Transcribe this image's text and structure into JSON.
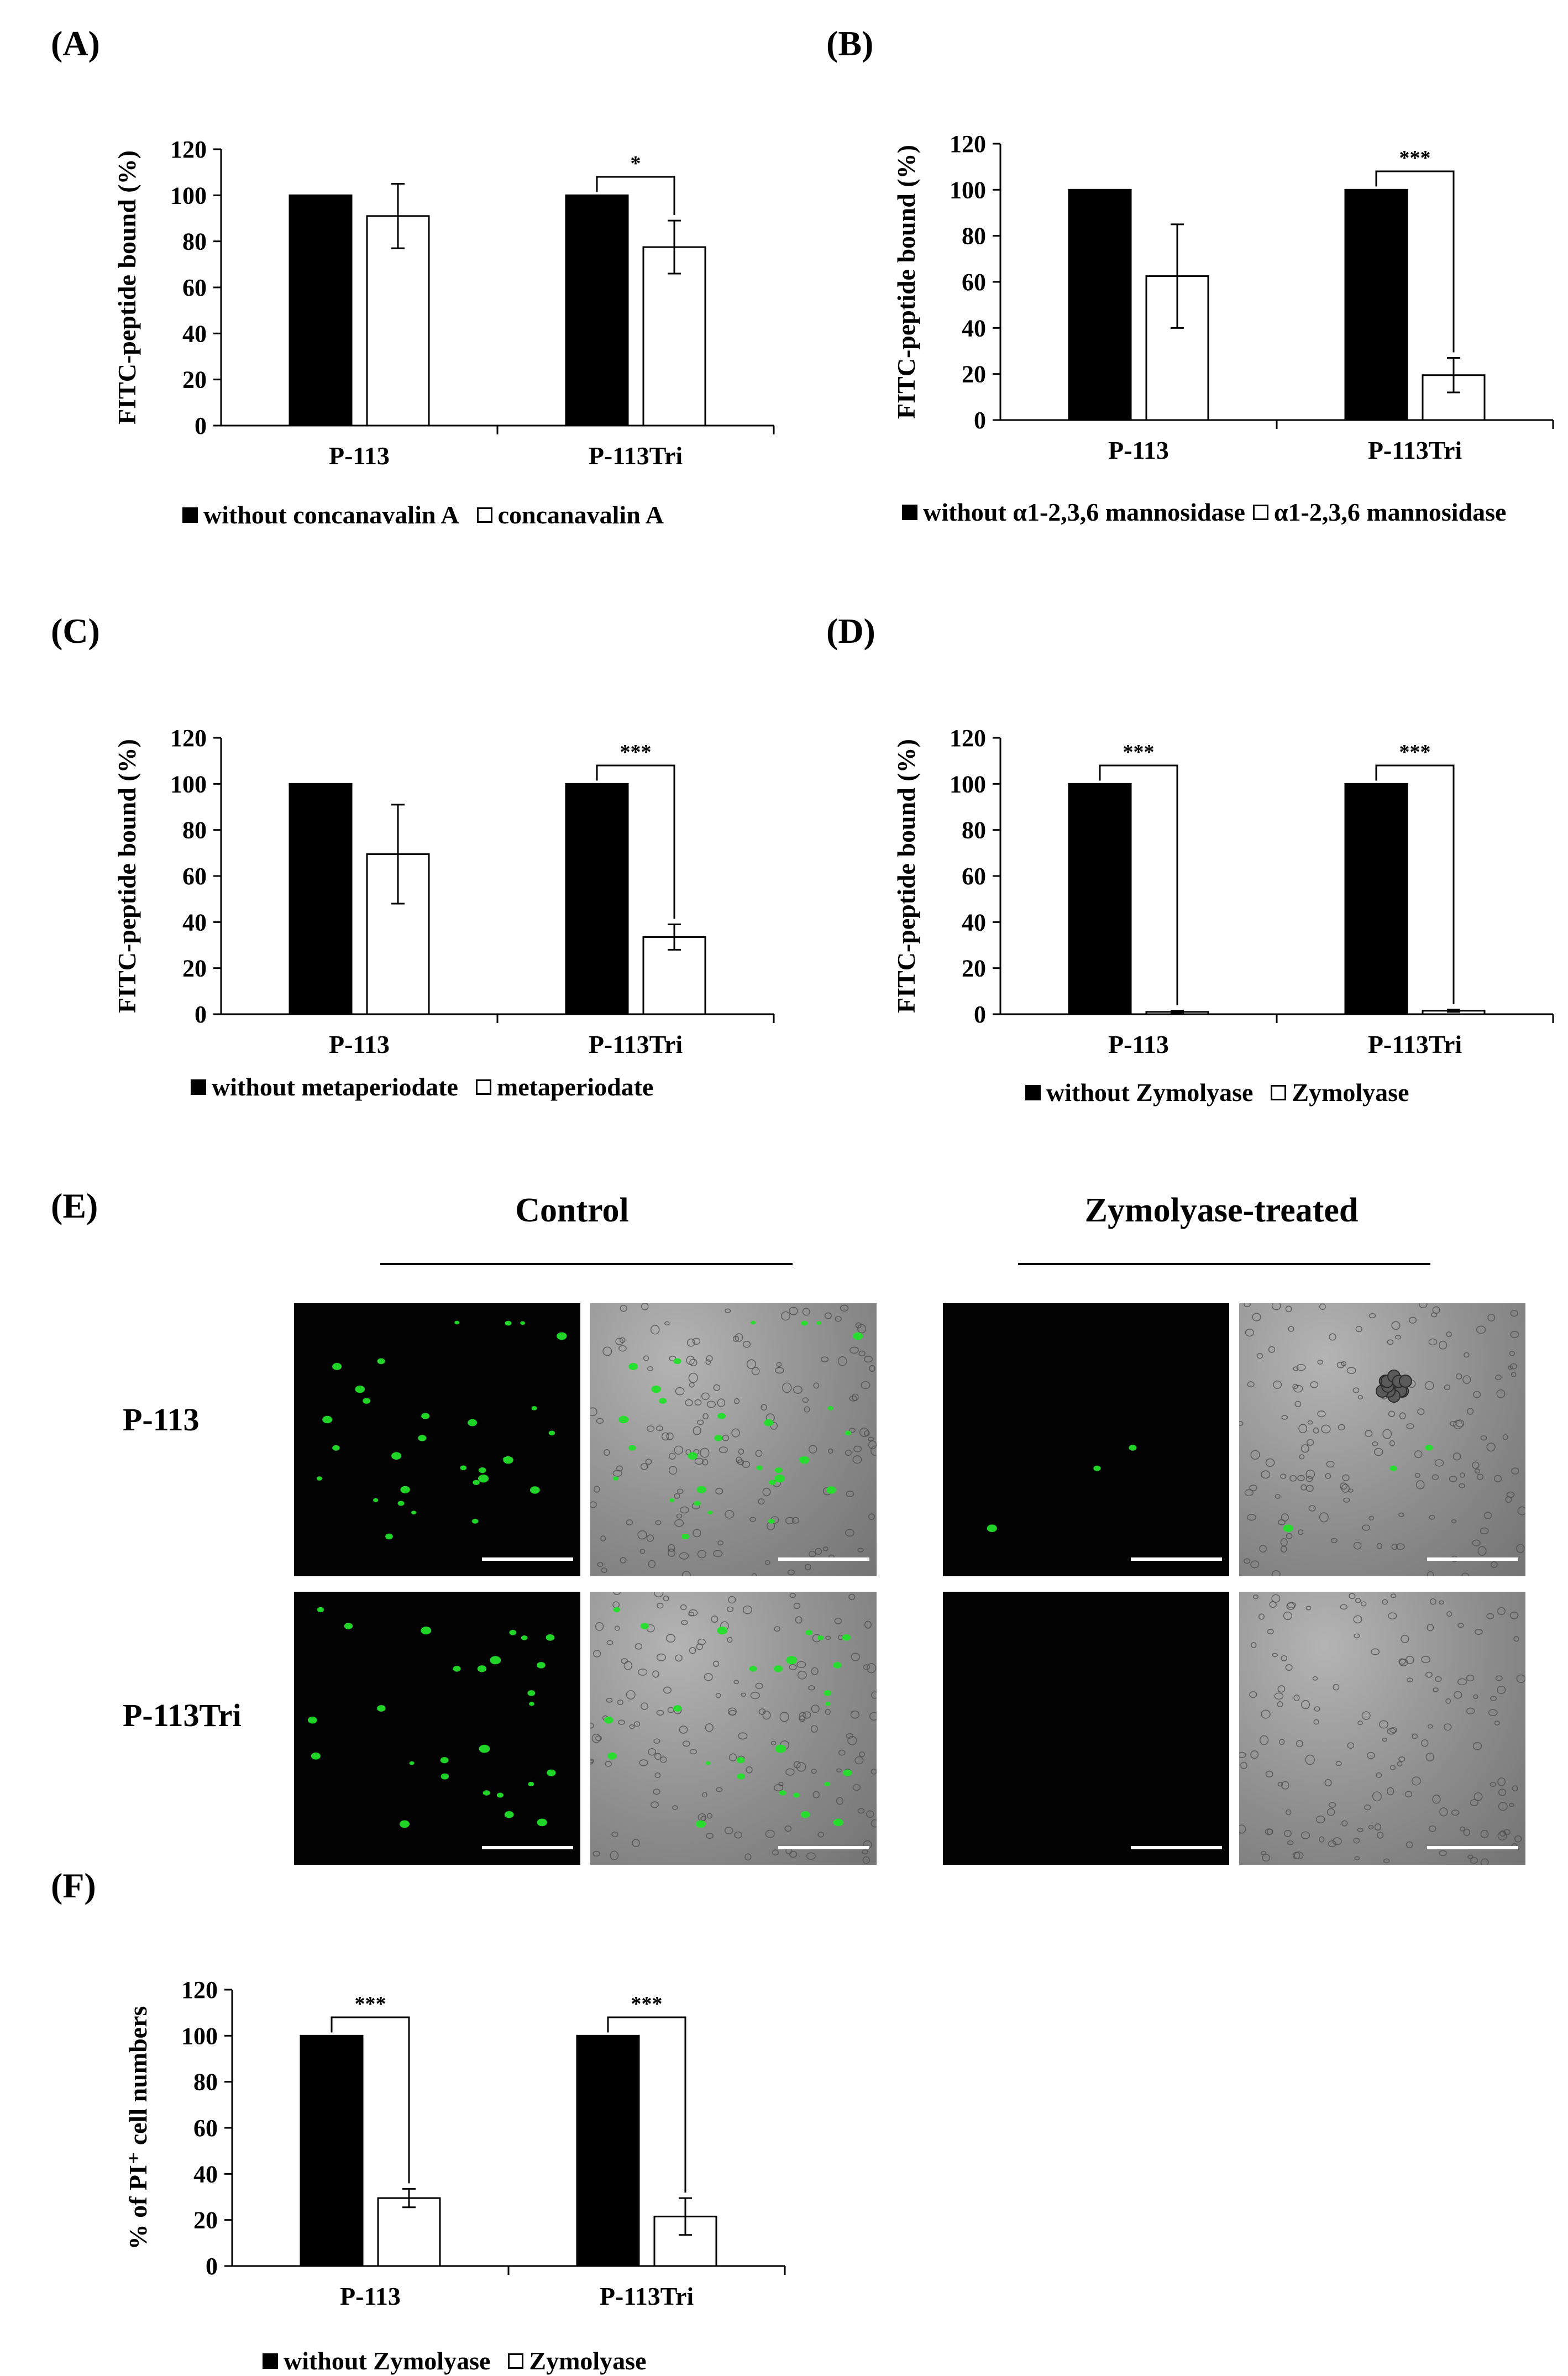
{
  "colors": {
    "bar_black": "#000000",
    "bar_white": "#ffffff",
    "green_fluorescence": "#22e02a"
  },
  "figure": {
    "panels": {
      "A": {
        "label": "(A)",
        "ylabel": "FITC-peptide bound (%)",
        "legend": [
          "without concanavalin A",
          "concanavalin A"
        ]
      },
      "B": {
        "label": "(B)",
        "ylabel": "FITC-peptide bound (%)",
        "legend": [
          "without α1-2,3,6 mannosidase",
          "α1-2,3,6 mannosidase"
        ]
      },
      "C": {
        "label": "(C)",
        "ylabel": "FITC-peptide bound (%)",
        "legend": [
          "without metaperiodate",
          "metaperiodate"
        ]
      },
      "D": {
        "label": "(D)",
        "ylabel": "FITC-peptide bound (%)",
        "legend": [
          "without Zymolyase",
          "Zymolyase"
        ]
      },
      "E": {
        "label": "(E)",
        "headers": [
          "Control",
          "Zymolyase-treated"
        ],
        "rows": [
          "P-113",
          "P-113Tri"
        ],
        "image_types": [
          "fluorescence-icon",
          "brightfield-merge-icon"
        ]
      },
      "F": {
        "label": "(F)",
        "ylabel": "% of PI⁺ cell numbers",
        "legend": [
          "without Zymolyase",
          "Zymolyase"
        ]
      }
    }
  },
  "chart_data": [
    {
      "id": "A",
      "type": "bar",
      "categories": [
        "P-113",
        "P-113Tri"
      ],
      "series": [
        {
          "name": "without concanavalin A",
          "values": [
            100,
            100
          ],
          "errors": [
            0,
            0
          ]
        },
        {
          "name": "concanavalin A",
          "values": [
            91,
            77.5
          ],
          "errors": [
            14,
            11.5
          ]
        }
      ],
      "ylabel": "FITC-peptide bound (%)",
      "ylim": [
        0,
        120
      ],
      "yticks": [
        0,
        20,
        40,
        60,
        80,
        100,
        120
      ],
      "significance": [
        {
          "category": "P-113Tri",
          "label": "*"
        }
      ]
    },
    {
      "id": "B",
      "type": "bar",
      "categories": [
        "P-113",
        "P-113Tri"
      ],
      "series": [
        {
          "name": "without α1-2,3,6 mannosidase",
          "values": [
            100,
            100
          ],
          "errors": [
            0,
            0
          ]
        },
        {
          "name": "α1-2,3,6 mannosidase",
          "values": [
            62.5,
            19.5
          ],
          "errors": [
            22.5,
            7.5
          ]
        }
      ],
      "ylabel": "FITC-peptide bound (%)",
      "ylim": [
        0,
        120
      ],
      "yticks": [
        0,
        20,
        40,
        60,
        80,
        100,
        120
      ],
      "significance": [
        {
          "category": "P-113Tri",
          "label": "***"
        }
      ]
    },
    {
      "id": "C",
      "type": "bar",
      "categories": [
        "P-113",
        "P-113Tri"
      ],
      "series": [
        {
          "name": "without metaperiodate",
          "values": [
            100,
            100
          ],
          "errors": [
            0,
            0
          ]
        },
        {
          "name": "metaperiodate",
          "values": [
            69.5,
            33.5
          ],
          "errors": [
            21.5,
            5.5
          ]
        }
      ],
      "ylabel": "FITC-peptide bound (%)",
      "ylim": [
        0,
        120
      ],
      "yticks": [
        0,
        20,
        40,
        60,
        80,
        100,
        120
      ],
      "significance": [
        {
          "category": "P-113Tri",
          "label": "***"
        }
      ]
    },
    {
      "id": "D",
      "type": "bar",
      "categories": [
        "P-113",
        "P-113Tri"
      ],
      "series": [
        {
          "name": "without Zymolyase",
          "values": [
            100,
            100
          ],
          "errors": [
            0,
            0
          ]
        },
        {
          "name": "Zymolyase",
          "values": [
            1,
            1.5
          ],
          "errors": [
            0.5,
            0.5
          ]
        }
      ],
      "ylabel": "FITC-peptide bound (%)",
      "ylim": [
        0,
        120
      ],
      "yticks": [
        0,
        20,
        40,
        60,
        80,
        100,
        120
      ],
      "significance": [
        {
          "category": "P-113",
          "label": "***"
        },
        {
          "category": "P-113Tri",
          "label": "***"
        }
      ]
    },
    {
      "id": "F",
      "type": "bar",
      "categories": [
        "P-113",
        "P-113Tri"
      ],
      "series": [
        {
          "name": "without Zymolyase",
          "values": [
            100,
            100
          ],
          "errors": [
            0,
            0
          ]
        },
        {
          "name": "Zymolyase",
          "values": [
            29.5,
            21.5
          ],
          "errors": [
            4,
            8
          ]
        }
      ],
      "ylabel": "% of PI⁺ cell numbers",
      "ylim": [
        0,
        120
      ],
      "yticks": [
        0,
        20,
        40,
        60,
        80,
        100,
        120
      ],
      "significance": [
        {
          "category": "P-113",
          "label": "***"
        },
        {
          "category": "P-113Tri",
          "label": "***"
        }
      ]
    }
  ]
}
